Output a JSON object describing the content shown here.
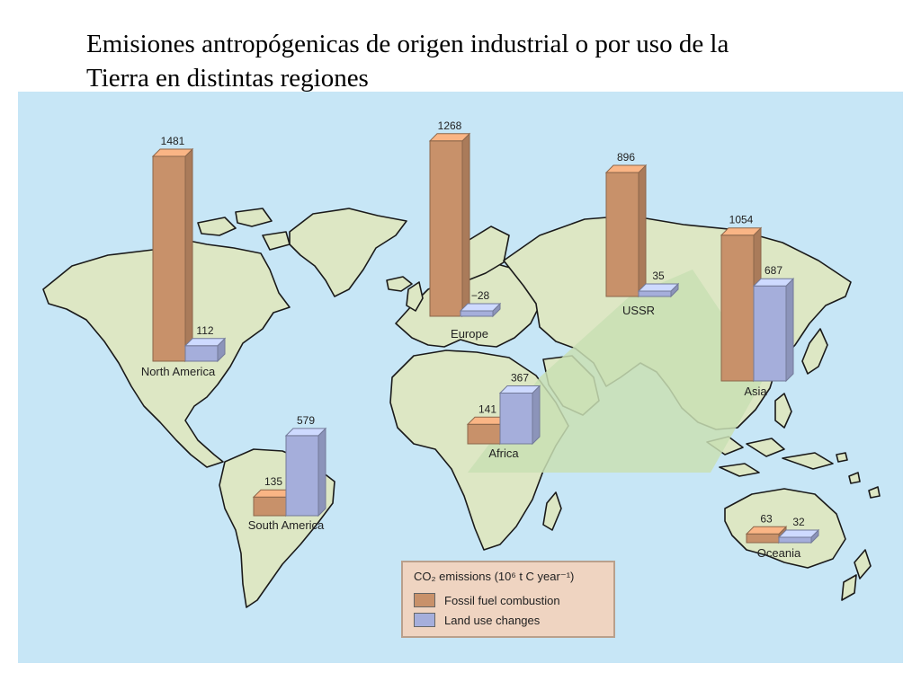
{
  "title": {
    "line1": "Emisiones antropógenicas de origen industrial o por uso de la",
    "line2": "Tierra en distintas regiones"
  },
  "colors": {
    "ocean": "#c7e6f6",
    "land": "#dde7c4",
    "fossil_fuel": "#c8916a",
    "land_use": "#a5aedb",
    "legend_bg": "#efd4c1"
  },
  "legend": {
    "title": "CO₂ emissions (10⁶ t C year⁻¹)",
    "items": [
      {
        "label": "Fossil fuel combustion",
        "color": "#c8916a"
      },
      {
        "label": "Land use changes",
        "color": "#a5aedb"
      }
    ]
  },
  "chart_data": {
    "type": "bar",
    "categories": [
      "North America",
      "Europe",
      "USSR",
      "Asia",
      "Africa",
      "South America",
      "Oceania"
    ],
    "series": [
      {
        "name": "Fossil fuel combustion",
        "values": [
          1481,
          1268,
          896,
          1054,
          141,
          135,
          63
        ],
        "labels": [
          "1481",
          "1268",
          "896",
          "1054",
          "141",
          "135",
          "63"
        ]
      },
      {
        "name": "Land use changes",
        "values": [
          112,
          -28,
          35,
          687,
          367,
          579,
          32
        ],
        "labels": [
          "112",
          "−28",
          "35",
          "687",
          "367",
          "579",
          "32"
        ]
      }
    ],
    "title": "",
    "xlabel": "",
    "ylabel": "CO₂ emissions (10⁶ t C year⁻¹)"
  }
}
